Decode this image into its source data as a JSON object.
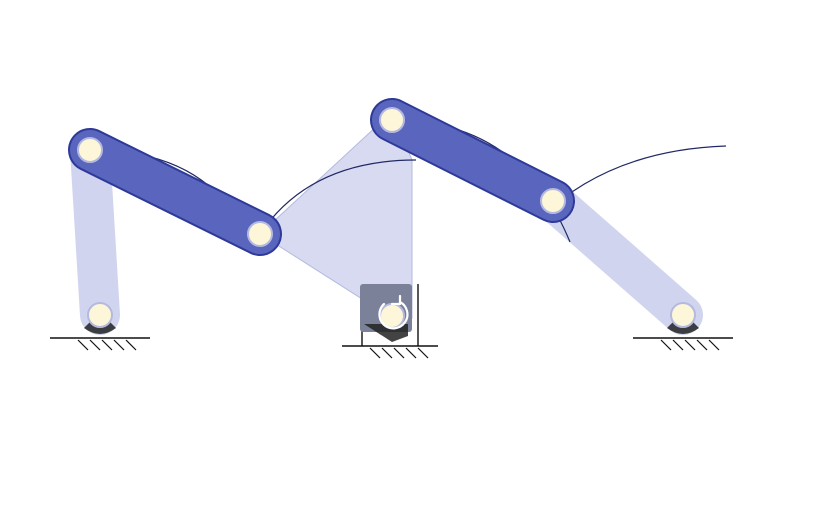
{
  "diagram": {
    "colors": {
      "background": "#ffffff",
      "active_link": "#5a66bd",
      "active_link_edge": "#2e3a99",
      "passive_link": "#c9cdec",
      "passive_link_edge": "#b4badf",
      "coupler_plate": "#c6cae9",
      "joint_fill": "#fdf6d8",
      "trace_curve": "#222a66",
      "ground": "#111111",
      "motor_box": "#7c819a",
      "motor_symbol": "#ffffff"
    },
    "icons": {
      "motor": "rotate-icon",
      "ground": "ground-hatch-icon"
    }
  }
}
